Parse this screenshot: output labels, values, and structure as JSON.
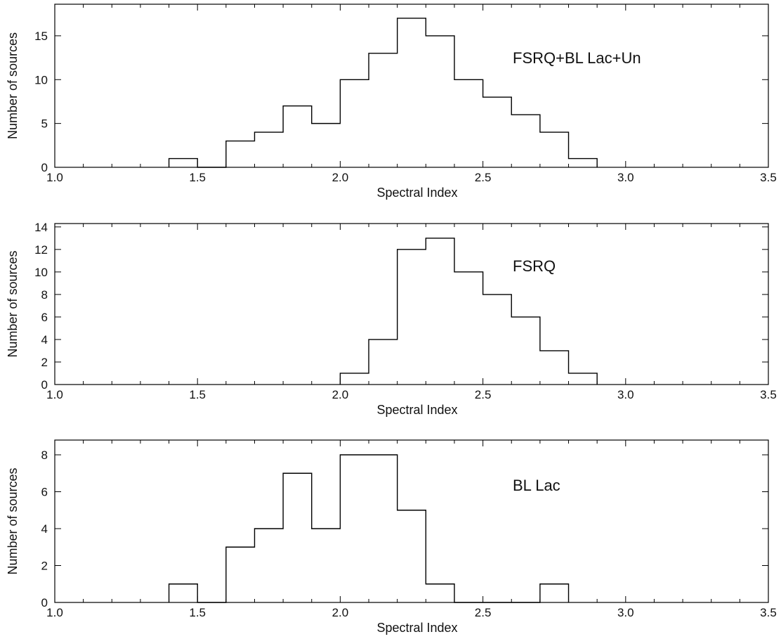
{
  "chart_data": [
    {
      "type": "bar",
      "panel_label": "FSRQ+BL Lac+Un",
      "xlabel": "Spectral Index",
      "ylabel": "Number of sources",
      "xlim": [
        1.0,
        3.5
      ],
      "ylim": [
        0,
        18.6
      ],
      "xticks": [
        "1.0",
        "1.5",
        "2.0",
        "2.5",
        "3.0",
        "3.5"
      ],
      "yticks": [
        0,
        5,
        10,
        15
      ],
      "bin_width": 0.1,
      "bins": [
        {
          "x": 1.4,
          "count": 1
        },
        {
          "x": 1.5,
          "count": 0
        },
        {
          "x": 1.6,
          "count": 3
        },
        {
          "x": 1.7,
          "count": 4
        },
        {
          "x": 1.8,
          "count": 7
        },
        {
          "x": 1.9,
          "count": 5
        },
        {
          "x": 2.0,
          "count": 10
        },
        {
          "x": 2.1,
          "count": 13
        },
        {
          "x": 2.2,
          "count": 17
        },
        {
          "x": 2.3,
          "count": 15
        },
        {
          "x": 2.4,
          "count": 10
        },
        {
          "x": 2.5,
          "count": 8
        },
        {
          "x": 2.6,
          "count": 6
        },
        {
          "x": 2.7,
          "count": 4
        },
        {
          "x": 2.8,
          "count": 1
        }
      ]
    },
    {
      "type": "bar",
      "panel_label": "FSRQ",
      "xlabel": "Spectral Index",
      "ylabel": "Number of sources",
      "xlim": [
        1.0,
        3.5
      ],
      "ylim": [
        0,
        14.3
      ],
      "xticks": [
        "1.0",
        "1.5",
        "2.0",
        "2.5",
        "3.0",
        "3.5"
      ],
      "yticks": [
        0,
        2,
        4,
        6,
        8,
        10,
        12,
        14
      ],
      "bin_width": 0.1,
      "bins": [
        {
          "x": 2.0,
          "count": 1
        },
        {
          "x": 2.1,
          "count": 4
        },
        {
          "x": 2.2,
          "count": 12
        },
        {
          "x": 2.3,
          "count": 13
        },
        {
          "x": 2.4,
          "count": 10
        },
        {
          "x": 2.5,
          "count": 8
        },
        {
          "x": 2.6,
          "count": 6
        },
        {
          "x": 2.7,
          "count": 3
        },
        {
          "x": 2.8,
          "count": 1
        }
      ]
    },
    {
      "type": "bar",
      "panel_label": "BL Lac",
      "xlabel": "Spectral Index",
      "ylabel": "Number of sources",
      "xlim": [
        1.0,
        3.5
      ],
      "ylim": [
        0,
        8.8
      ],
      "xticks": [
        "1.0",
        "1.5",
        "2.0",
        "2.5",
        "3.0",
        "3.5"
      ],
      "yticks": [
        0,
        2,
        4,
        6,
        8
      ],
      "bin_width": 0.1,
      "bins": [
        {
          "x": 1.4,
          "count": 1
        },
        {
          "x": 1.5,
          "count": 0
        },
        {
          "x": 1.6,
          "count": 3
        },
        {
          "x": 1.7,
          "count": 4
        },
        {
          "x": 1.8,
          "count": 7
        },
        {
          "x": 1.9,
          "count": 4
        },
        {
          "x": 2.0,
          "count": 8
        },
        {
          "x": 2.1,
          "count": 8
        },
        {
          "x": 2.2,
          "count": 5
        },
        {
          "x": 2.3,
          "count": 1
        },
        {
          "x": 2.4,
          "count": 0
        },
        {
          "x": 2.5,
          "count": 0
        },
        {
          "x": 2.6,
          "count": 0
        },
        {
          "x": 2.7,
          "count": 1
        }
      ]
    }
  ]
}
